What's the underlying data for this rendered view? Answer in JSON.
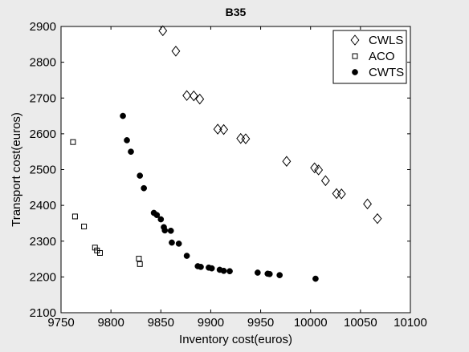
{
  "chart_data": {
    "type": "scatter",
    "title": "B35",
    "xlabel": "Inventory cost(euros)",
    "ylabel": "Transport cost(euros)",
    "xlim": [
      9750,
      10100
    ],
    "ylim": [
      2100,
      2900
    ],
    "x_ticks": [
      "9750",
      "9800",
      "9850",
      "9900",
      "9950",
      "10000",
      "10050",
      "10100"
    ],
    "y_ticks": [
      "2100",
      "2200",
      "2300",
      "2400",
      "2500",
      "2600",
      "2700",
      "2800",
      "2900"
    ],
    "grid": false,
    "legend_position": "top-right",
    "series": [
      {
        "name": "CWLS",
        "marker": "diamond-open",
        "color": "#000000",
        "points": [
          [
            9852,
            2888
          ],
          [
            9865,
            2831
          ],
          [
            9876,
            2707
          ],
          [
            9883,
            2706
          ],
          [
            9889,
            2697
          ],
          [
            9907,
            2613
          ],
          [
            9913,
            2612
          ],
          [
            9930,
            2587
          ],
          [
            9935,
            2586
          ],
          [
            9976,
            2523
          ],
          [
            10004,
            2505
          ],
          [
            10008,
            2499
          ],
          [
            10015,
            2469
          ],
          [
            10026,
            2433
          ],
          [
            10031,
            2432
          ],
          [
            10057,
            2404
          ],
          [
            10067,
            2363
          ]
        ]
      },
      {
        "name": "ACO",
        "marker": "square-open",
        "color": "#000000",
        "points": [
          [
            9762,
            2577
          ],
          [
            9764,
            2369
          ],
          [
            9773,
            2341
          ],
          [
            9784,
            2282
          ],
          [
            9786,
            2274
          ],
          [
            9789,
            2267
          ],
          [
            9828,
            2251
          ],
          [
            9829,
            2236
          ]
        ]
      },
      {
        "name": "CWTS",
        "marker": "circle-filled",
        "color": "#000000",
        "points": [
          [
            9812,
            2650
          ],
          [
            9816,
            2582
          ],
          [
            9820,
            2550
          ],
          [
            9829,
            2483
          ],
          [
            9833,
            2448
          ],
          [
            9843,
            2379
          ],
          [
            9846,
            2373
          ],
          [
            9850,
            2361
          ],
          [
            9853,
            2339
          ],
          [
            9854,
            2330
          ],
          [
            9860,
            2329
          ],
          [
            9861,
            2296
          ],
          [
            9868,
            2293
          ],
          [
            9876,
            2259
          ],
          [
            9887,
            2230
          ],
          [
            9890,
            2228
          ],
          [
            9898,
            2226
          ],
          [
            9901,
            2224
          ],
          [
            9909,
            2220
          ],
          [
            9913,
            2217
          ],
          [
            9919,
            2216
          ],
          [
            9947,
            2212
          ],
          [
            9957,
            2209
          ],
          [
            9959,
            2208
          ],
          [
            9969,
            2205
          ],
          [
            10005,
            2195
          ]
        ]
      }
    ]
  }
}
